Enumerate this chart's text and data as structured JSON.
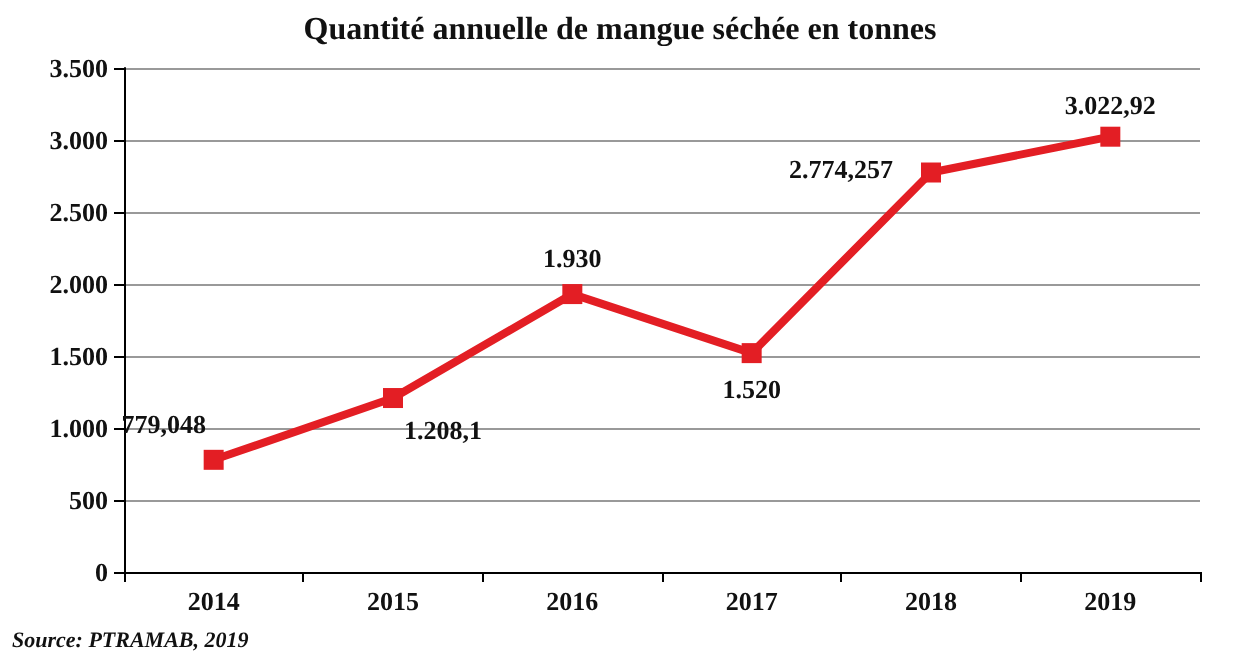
{
  "chart_data": {
    "type": "line",
    "title": "Quantité annuelle de mangue séchée en tonnes",
    "categories": [
      "2014",
      "2015",
      "2016",
      "2017",
      "2018",
      "2019"
    ],
    "series": [
      {
        "color": "#e31e24",
        "values": [
          779.048,
          1208.1,
          1930,
          1520,
          2774.257,
          3022.92
        ],
        "value_labels": [
          "779,048",
          "1.208,1",
          "1.930",
          "1.520",
          "2.774,257",
          "3.022,92"
        ]
      }
    ],
    "ylim": [
      0,
      3500
    ],
    "yticks": [
      {
        "value": 0,
        "label": "0"
      },
      {
        "value": 500,
        "label": "500"
      },
      {
        "value": 1000,
        "label": "1.000"
      },
      {
        "value": 1500,
        "label": "1.500"
      },
      {
        "value": 2000,
        "label": "2.000"
      },
      {
        "value": 2500,
        "label": "2.500"
      },
      {
        "value": 3000,
        "label": "3.000"
      },
      {
        "value": 3500,
        "label": "3.500"
      }
    ],
    "grid": "y",
    "marker": "square",
    "line_style": "solid",
    "annotations": [
      "Source: PTRAMAB, 2019"
    ]
  }
}
